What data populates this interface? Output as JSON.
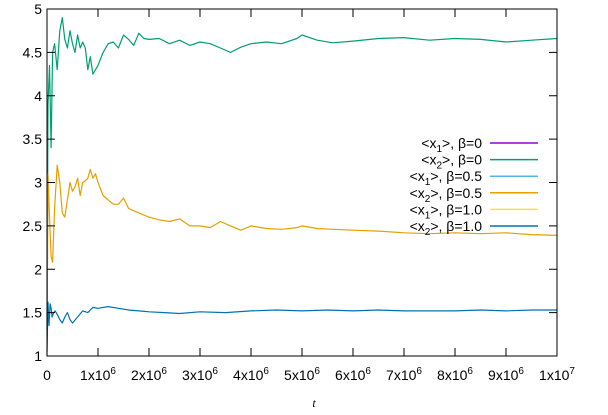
{
  "chart_data": {
    "type": "line",
    "xlabel": "t",
    "ylabel": "",
    "xlim": [
      0,
      10000000
    ],
    "ylim": [
      1,
      5
    ],
    "x_ticks": [
      {
        "value": 0,
        "label": "0"
      },
      {
        "value": 1000000,
        "label": "1x10",
        "exp": "6"
      },
      {
        "value": 2000000,
        "label": "2x10",
        "exp": "6"
      },
      {
        "value": 3000000,
        "label": "3x10",
        "exp": "6"
      },
      {
        "value": 4000000,
        "label": "4x10",
        "exp": "6"
      },
      {
        "value": 5000000,
        "label": "5x10",
        "exp": "6"
      },
      {
        "value": 6000000,
        "label": "6x10",
        "exp": "6"
      },
      {
        "value": 7000000,
        "label": "7x10",
        "exp": "6"
      },
      {
        "value": 8000000,
        "label": "8x10",
        "exp": "6"
      },
      {
        "value": 9000000,
        "label": "9x10",
        "exp": "6"
      },
      {
        "value": 10000000,
        "label": "1x10",
        "exp": "7"
      }
    ],
    "y_ticks": [
      {
        "value": 1,
        "label": "1"
      },
      {
        "value": 1.5,
        "label": "1.5"
      },
      {
        "value": 2,
        "label": "2"
      },
      {
        "value": 2.5,
        "label": "2.5"
      },
      {
        "value": 3,
        "label": "3"
      },
      {
        "value": 3.5,
        "label": "3.5"
      },
      {
        "value": 4,
        "label": "4"
      },
      {
        "value": 4.5,
        "label": "4.5"
      },
      {
        "value": 5,
        "label": "5"
      }
    ],
    "grid": false,
    "legend_position": "right",
    "series": [
      {
        "name": "<x1>, β=0",
        "label_pre": "<x",
        "label_sub": "1",
        "label_post": ">, β=0",
        "color": "#9400d3",
        "x": [
          0,
          10000000
        ],
        "y": [
          null,
          null
        ]
      },
      {
        "name": "<x2>, β=0",
        "label_pre": "<x",
        "label_sub": "2",
        "label_post": ">, β=0",
        "color": "#009e73",
        "x": [
          0,
          20000,
          50000,
          80000,
          110000,
          150000,
          200000,
          250000,
          300000,
          350000,
          400000,
          450000,
          500000,
          550000,
          600000,
          650000,
          700000,
          750000,
          800000,
          850000,
          900000,
          950000,
          1000000,
          1100000,
          1200000,
          1300000,
          1400000,
          1500000,
          1600000,
          1700000,
          1800000,
          1900000,
          2000000,
          2200000,
          2400000,
          2600000,
          2800000,
          3000000,
          3200000,
          3400000,
          3600000,
          3800000,
          4000000,
          4300000,
          4600000,
          4900000,
          5000000,
          5300000,
          5600000,
          6000000,
          6500000,
          7000000,
          7500000,
          8000000,
          8500000,
          9000000,
          9500000,
          10000000
        ],
        "y": [
          1.3,
          3.9,
          4.35,
          3.4,
          4.5,
          4.6,
          4.3,
          4.75,
          4.9,
          4.65,
          4.55,
          4.75,
          4.6,
          4.5,
          4.7,
          4.55,
          4.62,
          4.55,
          4.3,
          4.45,
          4.25,
          4.3,
          4.35,
          4.5,
          4.6,
          4.62,
          4.55,
          4.7,
          4.65,
          4.58,
          4.72,
          4.66,
          4.65,
          4.66,
          4.6,
          4.64,
          4.58,
          4.62,
          4.6,
          4.55,
          4.5,
          4.56,
          4.6,
          4.62,
          4.6,
          4.66,
          4.7,
          4.64,
          4.61,
          4.63,
          4.66,
          4.67,
          4.64,
          4.66,
          4.65,
          4.62,
          4.64,
          4.66
        ]
      },
      {
        "name": "<x1>, β=0.5",
        "label_pre": "<x",
        "label_sub": "1",
        "label_post": ">, β=0.5",
        "color": "#56b4e9",
        "x": [
          0,
          10000000
        ],
        "y": [
          null,
          null
        ]
      },
      {
        "name": "<x2>, β=0.5",
        "label_pre": "<x",
        "label_sub": "2",
        "label_post": ">, β=0.5",
        "color": "#e69f00",
        "x": [
          0,
          20000,
          50000,
          80000,
          110000,
          150000,
          200000,
          250000,
          300000,
          350000,
          400000,
          450000,
          500000,
          550000,
          600000,
          650000,
          700000,
          750000,
          800000,
          850000,
          900000,
          950000,
          1000000,
          1100000,
          1200000,
          1300000,
          1400000,
          1500000,
          1600000,
          1800000,
          2000000,
          2200000,
          2400000,
          2600000,
          2800000,
          3000000,
          3200000,
          3400000,
          3600000,
          3800000,
          4000000,
          4300000,
          4600000,
          4900000,
          5000000,
          5300000,
          5600000,
          6000000,
          6500000,
          7000000,
          7500000,
          8000000,
          8500000,
          9000000,
          9500000,
          10000000
        ],
        "y": [
          1.0,
          3.1,
          2.6,
          2.15,
          2.08,
          2.7,
          3.2,
          3.0,
          2.65,
          2.6,
          2.8,
          3.0,
          2.9,
          2.95,
          3.05,
          2.85,
          3.0,
          3.02,
          3.05,
          3.15,
          3.05,
          3.1,
          3.0,
          2.85,
          2.8,
          2.75,
          2.75,
          2.82,
          2.7,
          2.65,
          2.6,
          2.57,
          2.55,
          2.58,
          2.5,
          2.5,
          2.48,
          2.55,
          2.5,
          2.45,
          2.5,
          2.47,
          2.46,
          2.48,
          2.5,
          2.47,
          2.46,
          2.45,
          2.44,
          2.42,
          2.41,
          2.42,
          2.41,
          2.42,
          2.4,
          2.39
        ]
      },
      {
        "name": "<x1>, β=1.0",
        "label_pre": "<x",
        "label_sub": "1",
        "label_post": ">, β=1.0",
        "color": "#f0e442",
        "x": [
          0,
          10000000
        ],
        "y": [
          null,
          null
        ]
      },
      {
        "name": "<x2>, β=1.0",
        "label_pre": "<x",
        "label_sub": "2",
        "label_post": ">, β=1.0",
        "color": "#0072b2",
        "x": [
          0,
          20000,
          40000,
          60000,
          80000,
          100000,
          130000,
          160000,
          200000,
          250000,
          300000,
          350000,
          400000,
          450000,
          500000,
          600000,
          700000,
          800000,
          900000,
          1000000,
          1200000,
          1400000,
          1600000,
          1800000,
          2000000,
          2300000,
          2600000,
          3000000,
          3500000,
          4000000,
          4500000,
          5000000,
          5500000,
          6000000,
          6500000,
          7000000,
          7500000,
          8000000,
          8500000,
          9000000,
          9500000,
          10000000
        ],
        "y": [
          1.05,
          1.62,
          1.35,
          1.6,
          1.55,
          1.45,
          1.5,
          1.52,
          1.48,
          1.42,
          1.38,
          1.45,
          1.5,
          1.42,
          1.38,
          1.45,
          1.52,
          1.5,
          1.56,
          1.55,
          1.57,
          1.55,
          1.53,
          1.52,
          1.51,
          1.5,
          1.49,
          1.51,
          1.5,
          1.52,
          1.53,
          1.52,
          1.53,
          1.52,
          1.53,
          1.52,
          1.52,
          1.52,
          1.53,
          1.52,
          1.53,
          1.53
        ]
      }
    ]
  }
}
